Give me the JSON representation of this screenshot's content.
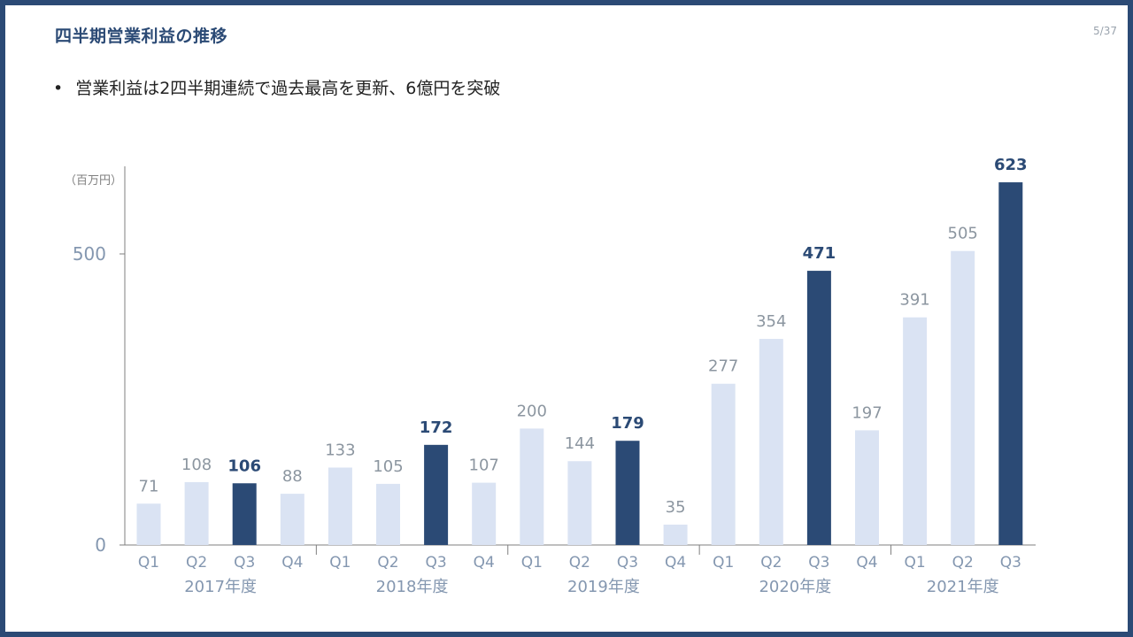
{
  "page_number": "5/37",
  "title": "四半期営業利益の推移",
  "bullets": [
    "営業利益は2四半期連続で過去最高を更新、6億円を突破"
  ],
  "colors": {
    "frame": "#2b4a75",
    "highlight_bar": "#2b4a75",
    "normal_bar": "#dae3f3",
    "label_normal": "#8c96a0",
    "label_highlight": "#2b4a75",
    "axis": "#7f7f7f"
  },
  "chart_data": {
    "type": "bar",
    "unit_label": "（百万円）",
    "ylim": [
      0,
      650
    ],
    "yticks": [
      0,
      500
    ],
    "grid": false,
    "categories": [
      "Q1",
      "Q2",
      "Q3",
      "Q4",
      "Q1",
      "Q2",
      "Q3",
      "Q4",
      "Q1",
      "Q2",
      "Q3",
      "Q4",
      "Q1",
      "Q2",
      "Q3",
      "Q4",
      "Q1",
      "Q2",
      "Q3"
    ],
    "values": [
      71,
      108,
      106,
      88,
      133,
      105,
      172,
      107,
      200,
      144,
      179,
      35,
      277,
      354,
      471,
      197,
      391,
      505,
      623
    ],
    "highlighted": [
      false,
      false,
      true,
      false,
      false,
      false,
      true,
      false,
      false,
      false,
      true,
      false,
      false,
      false,
      true,
      false,
      false,
      false,
      true
    ],
    "groups": [
      {
        "label": "2017年度",
        "count": 4
      },
      {
        "label": "2018年度",
        "count": 4
      },
      {
        "label": "2019年度",
        "count": 4
      },
      {
        "label": "2020年度",
        "count": 4
      },
      {
        "label": "2021年度",
        "count": 3
      }
    ]
  }
}
